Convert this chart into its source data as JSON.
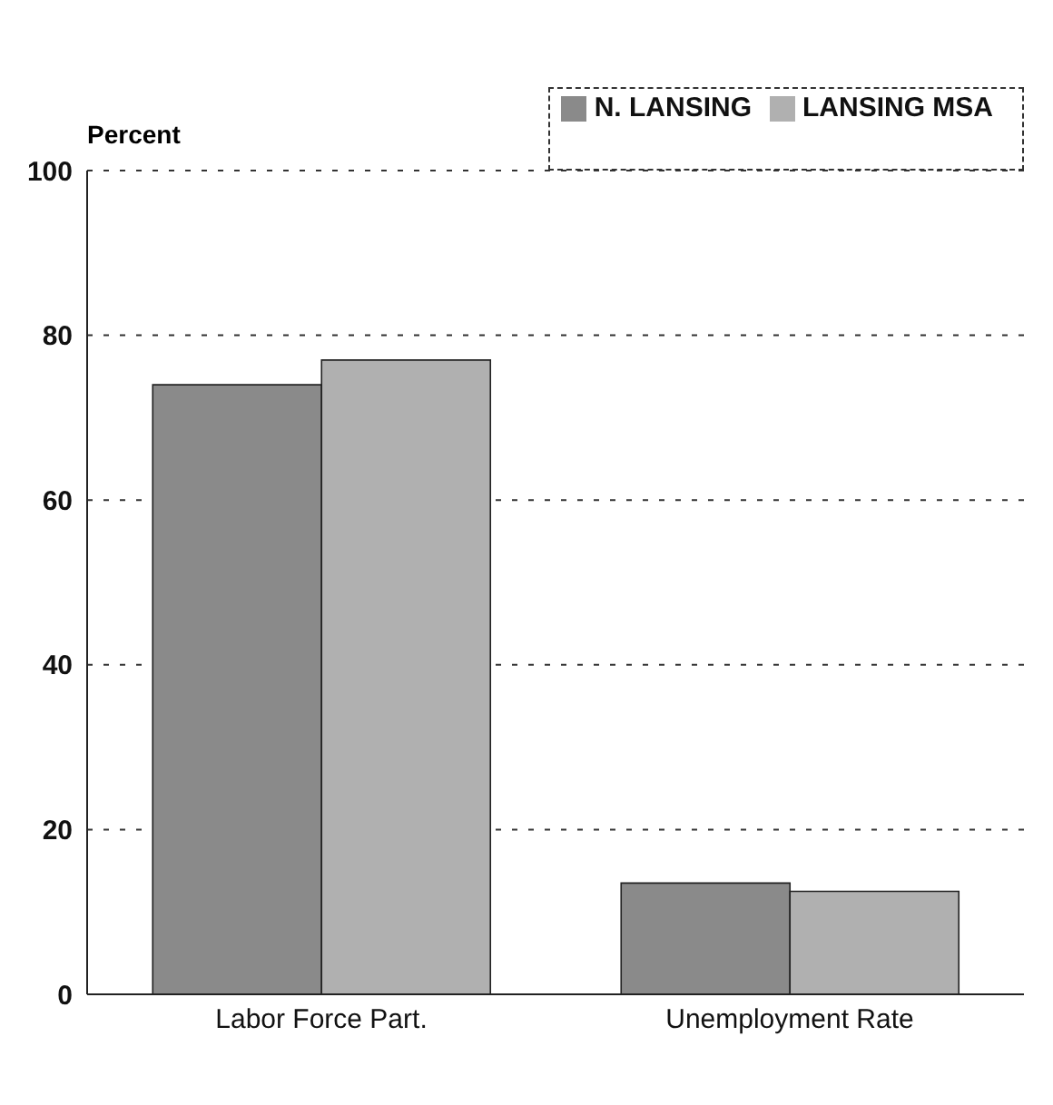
{
  "chart_data": {
    "type": "bar",
    "ylabel": "Percent",
    "categories": [
      "Labor Force Part.",
      "Unemployment Rate"
    ],
    "series": [
      {
        "name": "N. LANSING",
        "color": "#8a8a8a",
        "values": [
          74,
          13.5
        ]
      },
      {
        "name": "LANSING MSA",
        "color": "#b0b0b0",
        "values": [
          77,
          12.5
        ]
      }
    ],
    "ylim": [
      0,
      100
    ],
    "yticks": [
      0,
      20,
      40,
      60,
      80,
      100
    ],
    "grid": "y",
    "legend": "top right"
  }
}
